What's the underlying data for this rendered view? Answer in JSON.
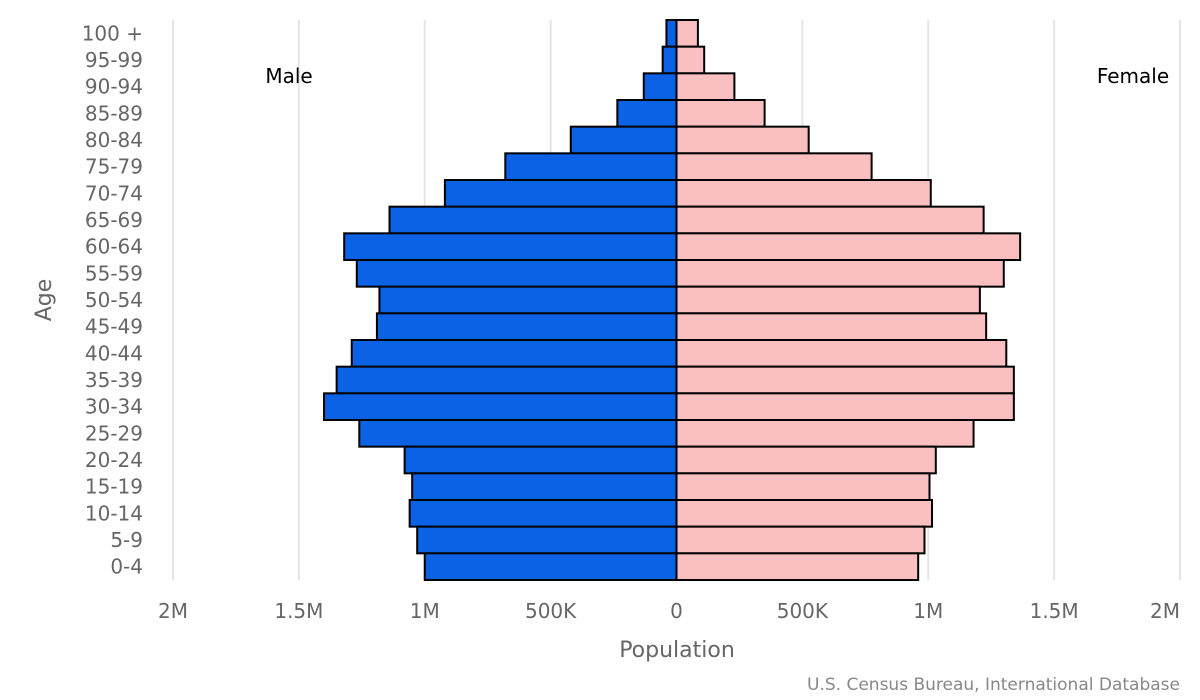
{
  "chart_data": {
    "type": "bar",
    "orientation": "horizontal-butterfly",
    "categories": [
      "100 +",
      "95-99",
      "90-94",
      "85-89",
      "80-84",
      "75-79",
      "70-74",
      "65-69",
      "60-64",
      "55-59",
      "50-54",
      "45-49",
      "40-44",
      "35-39",
      "30-34",
      "25-29",
      "20-24",
      "15-19",
      "10-14",
      "5-9",
      "0-4"
    ],
    "series": [
      {
        "name": "Male",
        "color": "#0c62e4",
        "values": [
          40000,
          55000,
          130000,
          235000,
          420000,
          680000,
          920000,
          1140000,
          1320000,
          1270000,
          1180000,
          1190000,
          1290000,
          1350000,
          1400000,
          1260000,
          1080000,
          1050000,
          1060000,
          1030000,
          1000000
        ]
      },
      {
        "name": "Female",
        "color": "#f9bfc1",
        "values": [
          85000,
          110000,
          230000,
          350000,
          525000,
          775000,
          1010000,
          1220000,
          1365000,
          1300000,
          1205000,
          1230000,
          1310000,
          1340000,
          1340000,
          1180000,
          1030000,
          1005000,
          1015000,
          985000,
          960000
        ]
      }
    ],
    "xlabel": "Population",
    "ylabel": "Age",
    "xlim": [
      -2000000,
      2000000
    ],
    "x_ticks": [
      {
        "value": -2000000,
        "label": "2M"
      },
      {
        "value": -1500000,
        "label": "1.5M"
      },
      {
        "value": -1000000,
        "label": "1M"
      },
      {
        "value": -500000,
        "label": "500K"
      },
      {
        "value": 0,
        "label": "0"
      },
      {
        "value": 500000,
        "label": "500K"
      },
      {
        "value": 1000000,
        "label": "1M"
      },
      {
        "value": 1500000,
        "label": "1.5M"
      },
      {
        "value": 2000000,
        "label": "2M"
      }
    ],
    "grid": true,
    "side_labels": {
      "left": "Male",
      "right": "Female"
    },
    "credit": "U.S. Census Bureau, International Database"
  }
}
